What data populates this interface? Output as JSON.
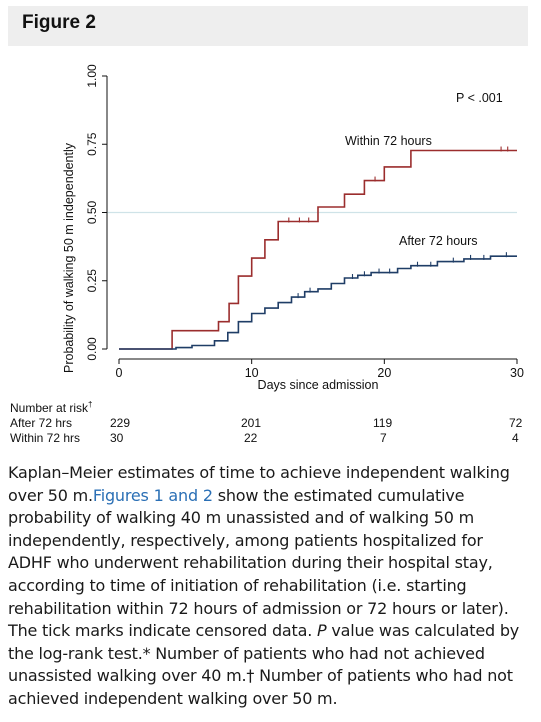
{
  "figure_title": "Figure 2",
  "chart_data": {
    "type": "line",
    "ylabel": "Probability of walking 50 m independently",
    "xlabel": "Days since admission",
    "xlim": [
      0,
      30
    ],
    "ylim": [
      0,
      1
    ],
    "x_ticks": [
      0,
      10,
      20,
      30
    ],
    "x_tick_labels": [
      "0",
      "10",
      "20",
      "30"
    ],
    "y_ticks": [
      0,
      0.25,
      0.5,
      0.75,
      1.0
    ],
    "y_tick_labels": [
      "0.00",
      "0.25",
      "0.50",
      "0.75",
      "1.00"
    ],
    "y_gridlines": [
      0.5
    ],
    "annotation": "P < .001",
    "series": [
      {
        "name": "Within 72 hours",
        "color": "#9b2d2d",
        "step_points": [
          [
            0,
            0
          ],
          [
            4,
            0
          ],
          [
            4,
            0.067
          ],
          [
            7.5,
            0.067
          ],
          [
            7.5,
            0.1
          ],
          [
            8.3,
            0.1
          ],
          [
            8.3,
            0.167
          ],
          [
            9,
            0.167
          ],
          [
            9,
            0.267
          ],
          [
            10,
            0.267
          ],
          [
            10,
            0.333
          ],
          [
            11,
            0.333
          ],
          [
            11,
            0.4
          ],
          [
            12,
            0.4
          ],
          [
            12,
            0.467
          ],
          [
            15,
            0.467
          ],
          [
            15,
            0.52
          ],
          [
            17,
            0.52
          ],
          [
            17,
            0.567
          ],
          [
            18.5,
            0.567
          ],
          [
            18.5,
            0.617
          ],
          [
            20,
            0.617
          ],
          [
            20,
            0.667
          ],
          [
            22,
            0.667
          ],
          [
            22,
            0.727
          ],
          [
            30,
            0.727
          ]
        ],
        "censor_x": [
          12.8,
          13.6,
          14.3,
          19.3,
          28.8,
          29.3
        ]
      },
      {
        "name": "After 72 hours",
        "color": "#1f3d66",
        "step_points": [
          [
            0,
            0
          ],
          [
            4.3,
            0
          ],
          [
            4.3,
            0.005
          ],
          [
            5.5,
            0.005
          ],
          [
            5.5,
            0.013
          ],
          [
            7.2,
            0.013
          ],
          [
            7.2,
            0.03
          ],
          [
            8.2,
            0.03
          ],
          [
            8.2,
            0.06
          ],
          [
            9,
            0.06
          ],
          [
            9,
            0.1
          ],
          [
            10,
            0.1
          ],
          [
            10,
            0.13
          ],
          [
            11,
            0.13
          ],
          [
            11,
            0.15
          ],
          [
            12,
            0.15
          ],
          [
            12,
            0.17
          ],
          [
            13,
            0.17
          ],
          [
            13,
            0.19
          ],
          [
            14,
            0.19
          ],
          [
            14,
            0.21
          ],
          [
            15,
            0.21
          ],
          [
            15,
            0.22
          ],
          [
            16,
            0.22
          ],
          [
            16,
            0.24
          ],
          [
            17,
            0.24
          ],
          [
            17,
            0.26
          ],
          [
            18,
            0.26
          ],
          [
            18,
            0.27
          ],
          [
            19,
            0.27
          ],
          [
            19,
            0.28
          ],
          [
            21,
            0.28
          ],
          [
            21,
            0.295
          ],
          [
            22,
            0.295
          ],
          [
            22,
            0.305
          ],
          [
            24,
            0.305
          ],
          [
            24,
            0.32
          ],
          [
            26,
            0.32
          ],
          [
            26,
            0.33
          ],
          [
            28,
            0.33
          ],
          [
            28,
            0.34
          ],
          [
            30,
            0.34
          ]
        ],
        "censor_x": [
          13.5,
          14.4,
          17.6,
          18.5,
          19.6,
          20.4,
          22.5,
          23.5,
          25.2,
          26.5,
          27.5,
          29.2
        ]
      }
    ]
  },
  "risk_table": {
    "title": "Number at risk",
    "title_mark": "†",
    "rows": [
      {
        "label": "After 72 hrs",
        "values": [
          "229",
          "201",
          "119",
          "72"
        ]
      },
      {
        "label": "Within 72 hrs",
        "values": [
          "30",
          "22",
          "7",
          "4"
        ]
      }
    ]
  },
  "caption": {
    "part1": "Kaplan–Meier estimates of time to achieve independent walking over 50 m.",
    "link": "Figures 1 and 2",
    "part2": " show the estimated cumulative probability of walking 40 m unassisted and of walking 50 m independently, respectively, among patients hospitalized for ADHF who underwent rehabilitation during their hospital stay, according to time of initiation of rehabilitation (i.e. starting rehabilitation within 72 hours of admission or 72 hours or later). The tick marks indicate censored data. ",
    "p_italic": "P",
    "part3": " value was calculated by the log-rank test.* Number of patients who had not achieved unassisted walking over 40 m.† Number of patients who had not achieved independent walking over 50 m."
  }
}
